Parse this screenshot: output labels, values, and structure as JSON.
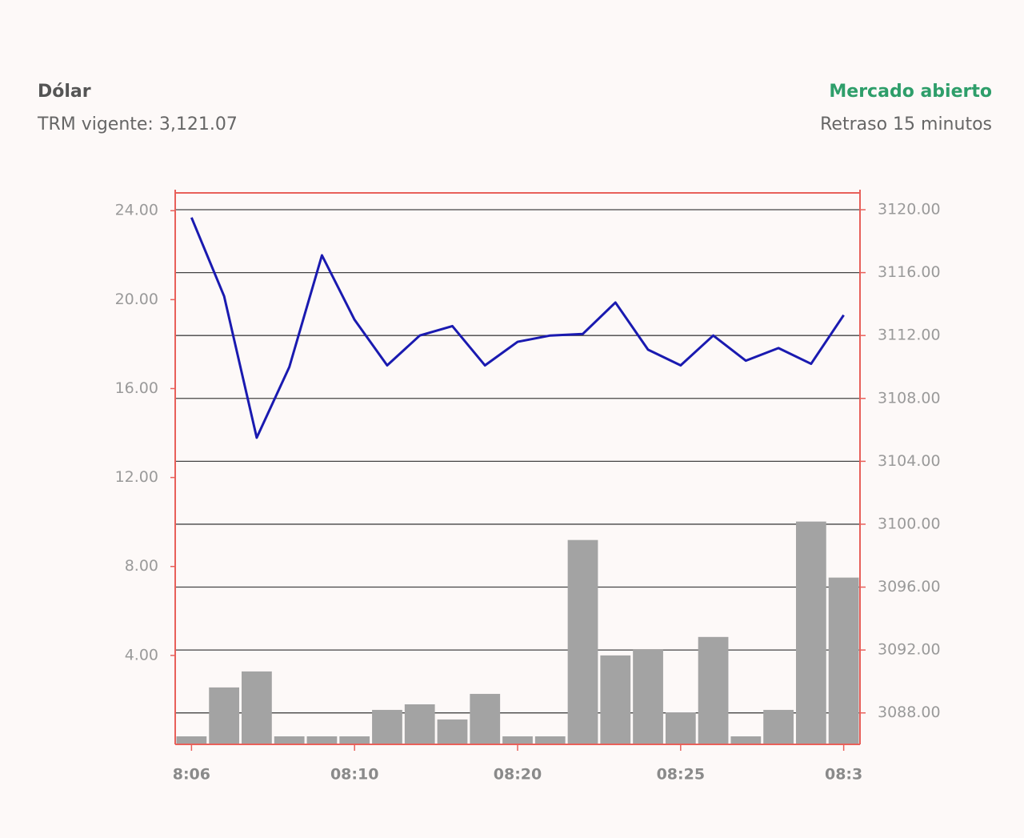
{
  "header": {
    "title": "Dólar",
    "subtitle": "TRM vigente: 3,121.07",
    "status": "Mercado abierto",
    "delay": "Retraso 15 minutos"
  },
  "chart_data": {
    "type": "combo",
    "categories": [
      "8:06",
      null,
      null,
      null,
      null,
      "08:10",
      null,
      null,
      null,
      null,
      "08:20",
      null,
      null,
      null,
      null,
      "08:25",
      null,
      null,
      null,
      null,
      "08:3"
    ],
    "series": [
      {
        "type": "bar",
        "color": "#a3a3a3",
        "values": [
          0.36,
          2.56,
          3.28,
          0.36,
          0.36,
          0.36,
          1.55,
          1.8,
          1.12,
          2.27,
          0.36,
          0.36,
          9.19,
          4.0,
          4.25,
          1.44,
          4.83,
          0.36,
          1.55,
          10.02,
          7.5
        ]
      },
      {
        "type": "line",
        "color": "#1a1ab0",
        "axis": "y2",
        "values": [
          3119.5,
          3114.5,
          3105.5,
          3110.0,
          3117.1,
          3113.0,
          3110.1,
          3112.0,
          3112.6,
          3110.1,
          3111.6,
          3112.0,
          3112.1,
          3114.1,
          3111.1,
          3110.1,
          3112.0,
          3110.4,
          3111.2,
          3110.2,
          3113.3
        ]
      }
    ],
    "ylim": [
      0,
      24.8
    ],
    "yticks": [
      {
        "value": 4,
        "label": "4.00"
      },
      {
        "value": 8,
        "label": "8.00"
      },
      {
        "value": 12,
        "label": "12.00"
      },
      {
        "value": 16,
        "label": "16.00"
      },
      {
        "value": 20,
        "label": "20.00"
      },
      {
        "value": 24,
        "label": "24.00"
      }
    ],
    "y2lim": [
      3086,
      3121.07
    ],
    "y2ticks": [
      {
        "value": 3088,
        "label": "3088.00"
      },
      {
        "value": 3092,
        "label": "3092.00"
      },
      {
        "value": 3096,
        "label": "3096.00"
      },
      {
        "value": 3100,
        "label": "3100.00"
      },
      {
        "value": 3104,
        "label": "3104.00"
      },
      {
        "value": 3108,
        "label": "3108.00"
      },
      {
        "value": 3112,
        "label": "3112.00"
      },
      {
        "value": 3116,
        "label": "3116.00"
      },
      {
        "value": 3120,
        "label": "3120.00"
      }
    ],
    "grid": "y2",
    "axis_color": "#e8605a"
  }
}
